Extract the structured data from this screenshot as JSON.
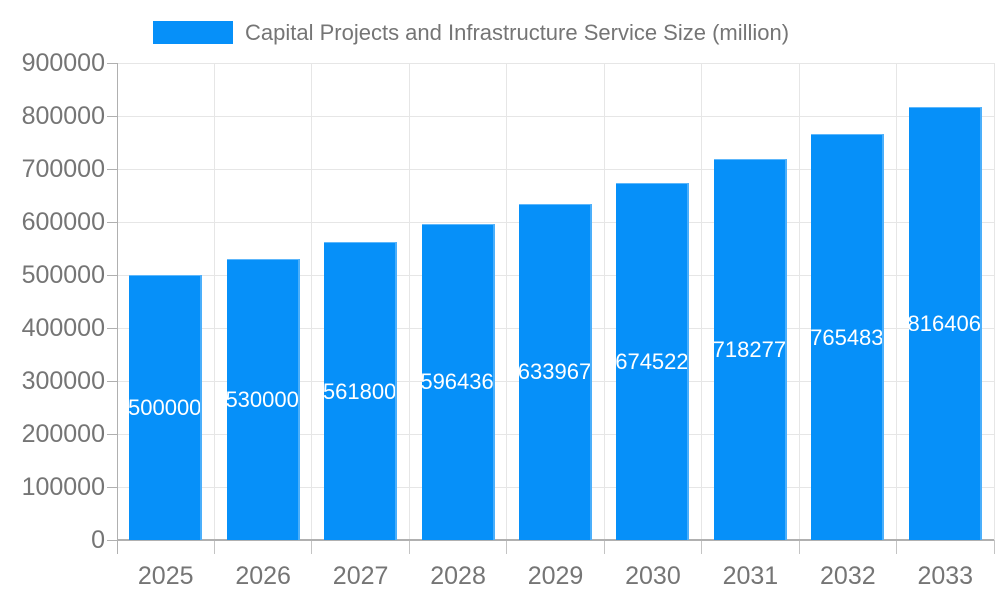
{
  "chart_data": {
    "type": "bar",
    "title": "",
    "legend": "Capital Projects and Infrastructure Service Size (million)",
    "legend_position": "top",
    "categories": [
      "2025",
      "2026",
      "2027",
      "2028",
      "2029",
      "2030",
      "2031",
      "2032",
      "2033"
    ],
    "series": [
      {
        "name": "Capital Projects and Infrastructure Service Size (million)",
        "values": [
          500000,
          530000,
          561800,
          596436,
          633967,
          674522,
          718277,
          765483,
          816406
        ]
      }
    ],
    "xlabel": "",
    "ylabel": "",
    "ylim": [
      0,
      900000
    ],
    "y_ticks": [
      0,
      100000,
      200000,
      300000,
      400000,
      500000,
      600000,
      700000,
      800000,
      900000
    ],
    "grid": "both",
    "value_labels": "inside-center-white-clipped-to-bar",
    "colors": {
      "bar": "#0690f9",
      "grid": "#e6e6e6",
      "axis": "#b0b0b0",
      "x_tick": "#c4c4c4",
      "axis_text": "#757575",
      "bar_label_text": "#ffffff",
      "background": "#ffffff"
    }
  }
}
